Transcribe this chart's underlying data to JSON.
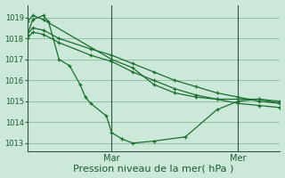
{
  "background_color": "#cce8d8",
  "plot_bg_color": "#cce8d8",
  "grid_color": "#88bb99",
  "line_color": "#1a6e2e",
  "xlabel": "Pression niveau de la mer( hPa )",
  "xlabel_fontsize": 8,
  "ytick_values": [
    1013,
    1014,
    1015,
    1016,
    1017,
    1018,
    1019
  ],
  "ylim": [
    1012.6,
    1019.6
  ],
  "xlim": [
    0,
    48
  ],
  "xtick_positions": [
    16,
    40
  ],
  "xtick_labels": [
    "Mar",
    "Mer"
  ],
  "vlines_x": [
    16,
    40
  ],
  "series": [
    {
      "x": [
        0,
        1,
        3,
        4,
        6,
        8,
        10,
        11,
        12,
        15,
        16,
        18,
        20,
        24,
        30,
        36,
        40,
        44,
        48
      ],
      "y": [
        1018.2,
        1018.9,
        1019.1,
        1018.8,
        1017.0,
        1016.7,
        1015.8,
        1015.2,
        1014.9,
        1014.3,
        1013.5,
        1013.2,
        1013.0,
        1013.1,
        1013.3,
        1014.6,
        1015.0,
        1015.1,
        1014.9
      ]
    },
    {
      "x": [
        0,
        1,
        3,
        16,
        20,
        24,
        28,
        32,
        36,
        40,
        44,
        48
      ],
      "y": [
        1018.8,
        1019.1,
        1018.9,
        1017.0,
        1016.6,
        1015.8,
        1015.4,
        1015.2,
        1015.1,
        1015.1,
        1015.1,
        1015.0
      ]
    },
    {
      "x": [
        0,
        1,
        3,
        6,
        12,
        16,
        20,
        24,
        28,
        32,
        36,
        40,
        44,
        48
      ],
      "y": [
        1018.2,
        1018.5,
        1018.4,
        1018.0,
        1017.5,
        1017.2,
        1016.8,
        1016.4,
        1016.0,
        1015.7,
        1015.4,
        1015.2,
        1015.0,
        1014.9
      ]
    },
    {
      "x": [
        0,
        1,
        3,
        6,
        12,
        16,
        20,
        24,
        28,
        32,
        36,
        40,
        44,
        48
      ],
      "y": [
        1018.0,
        1018.3,
        1018.2,
        1017.8,
        1017.2,
        1016.9,
        1016.4,
        1016.0,
        1015.6,
        1015.3,
        1015.1,
        1014.9,
        1014.8,
        1014.7
      ]
    }
  ],
  "marker_size": 3.5,
  "linewidth": 0.9
}
